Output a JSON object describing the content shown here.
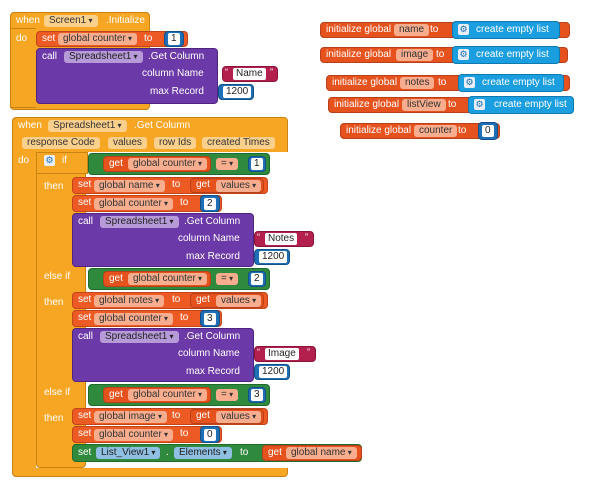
{
  "colors": {
    "event": "#f6a623",
    "procedure": "#6c3aa8",
    "variable": "#ee5a24",
    "math": "#2f8a3d",
    "list": "#1a9ee0",
    "text": "#b3204e",
    "component": "#2c8a9b"
  },
  "block1": {
    "when": "when",
    "component": "Screen1",
    "event": ".Initialize",
    "do": "do",
    "set": "set",
    "var": "global counter",
    "to": "to",
    "value": "1",
    "call": "call",
    "call_component": "Spreadsheet1",
    "method": ".Get Column",
    "column_name_label": "column Name",
    "column_name": "Name",
    "max_record_label": "max Record",
    "max_record": "1200"
  },
  "globals": [
    {
      "label": "initialize global",
      "name": "name",
      "to": "to",
      "value": "create empty list"
    },
    {
      "label": "initialize global",
      "name": "image",
      "to": "to",
      "value": "create empty list"
    },
    {
      "label": "initialize global",
      "name": "notes",
      "to": "to",
      "value": "create empty list"
    },
    {
      "label": "initialize global",
      "name": "listView",
      "to": "to",
      "value": "create empty list"
    },
    {
      "label": "initialize global",
      "name": "counter",
      "to": "to",
      "value": "0"
    }
  ],
  "block2": {
    "when": "when",
    "component": "Spreadsheet1",
    "event": ".Get Column",
    "params": [
      "response Code",
      "values",
      "row Ids",
      "created Times"
    ],
    "do": "do",
    "if": "if",
    "then": "then",
    "else_if": "else if",
    "get": "get",
    "counter_var": "global counter",
    "eq": "=",
    "set": "set",
    "to": "to",
    "values_param": "values",
    "call": "call",
    "call_component": "Spreadsheet1",
    "method": ".Get Column",
    "column_name_label": "column Name",
    "max_record_label": "max Record",
    "branches": [
      {
        "cmp": "1",
        "set_var": "global name",
        "counter_to": "2",
        "column": "Notes",
        "max": "1200"
      },
      {
        "cmp": "2",
        "set_var": "global notes",
        "counter_to": "3",
        "column": "Image",
        "max": "1200"
      },
      {
        "cmp": "3",
        "set_var": "global image",
        "counter_to": "0"
      }
    ],
    "final_set": {
      "set": "set",
      "component": "List_View1",
      "property": "Elements",
      "to": "to",
      "get": "get",
      "var": "global name"
    }
  }
}
